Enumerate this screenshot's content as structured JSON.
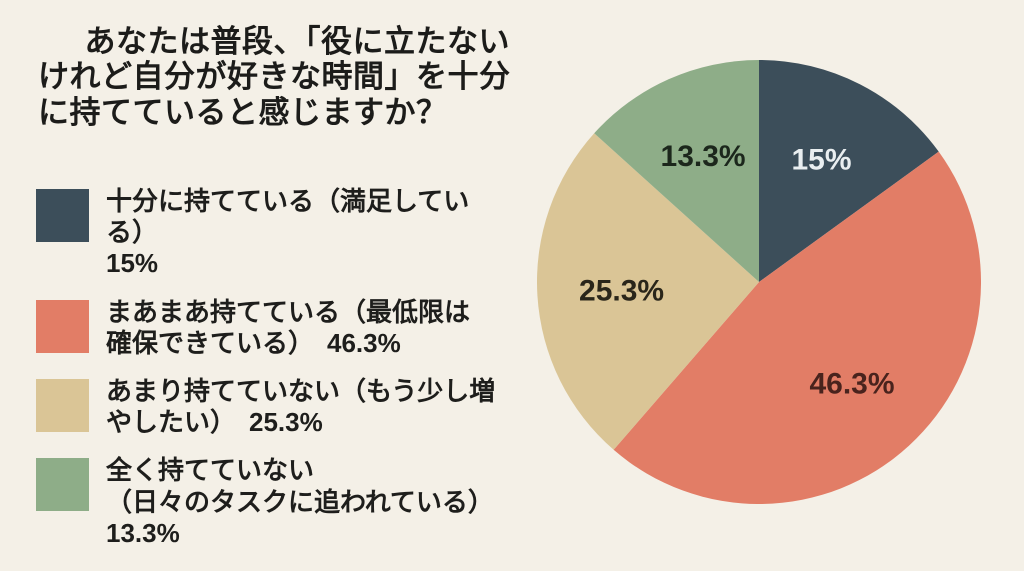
{
  "page": {
    "background_color": "#f4f0e7"
  },
  "title": {
    "lines": [
      "あなたは普段、「役に立たない",
      "けれど自分が好きな時間」を十分",
      "に持てていると感じますか？"
    ]
  },
  "legend": {
    "items": [
      {
        "lines": [
          "十分に持てている（満足している）",
          "15%"
        ],
        "color": "#3c4e5a",
        "value_label": "15%"
      },
      {
        "lines": [
          "まあまあ持てている（最低限は",
          "確保できている）　46.3%"
        ],
        "color": "#e27d66",
        "value_label": "46.3%"
      },
      {
        "lines": [
          "あまり持てていない（もう少し増",
          "やしたい）　25.3%"
        ],
        "color": "#dac596",
        "value_label": "25.3%"
      },
      {
        "lines": [
          "全く持てていない",
          "（日々のタスクに追われている）",
          "13.3%"
        ],
        "color": "#8ead88",
        "value_label": "13.3%"
      }
    ]
  },
  "chart_data": {
    "type": "pie",
    "title": "あなたは普段、「役に立たないけれど自分が好きな時間」を十分に持てていると感じますか？",
    "categories": [
      "十分に持てている（満足している）",
      "まあまあ持てている（最低限は確保できている）",
      "あまり持てていない（もう少し増やしたい）",
      "全く持てていない（日々のタスクに追われている）"
    ],
    "values": [
      15,
      46.3,
      25.3,
      13.3
    ],
    "labels": [
      "15%",
      "46.3%",
      "25.3%",
      "13.3%"
    ],
    "colors": [
      "#3c4e5a",
      "#e27d66",
      "#dac596",
      "#8ead88"
    ],
    "label_colors": [
      "#e9eef0",
      "#49231d",
      "#2a261a",
      "#1c271c"
    ],
    "start_angle_deg": 0,
    "direction": "clockwise",
    "start_position": "12-oclock",
    "label_radius_fraction": 0.62,
    "legend_position": "left",
    "background_color": "#f4f0e7"
  }
}
